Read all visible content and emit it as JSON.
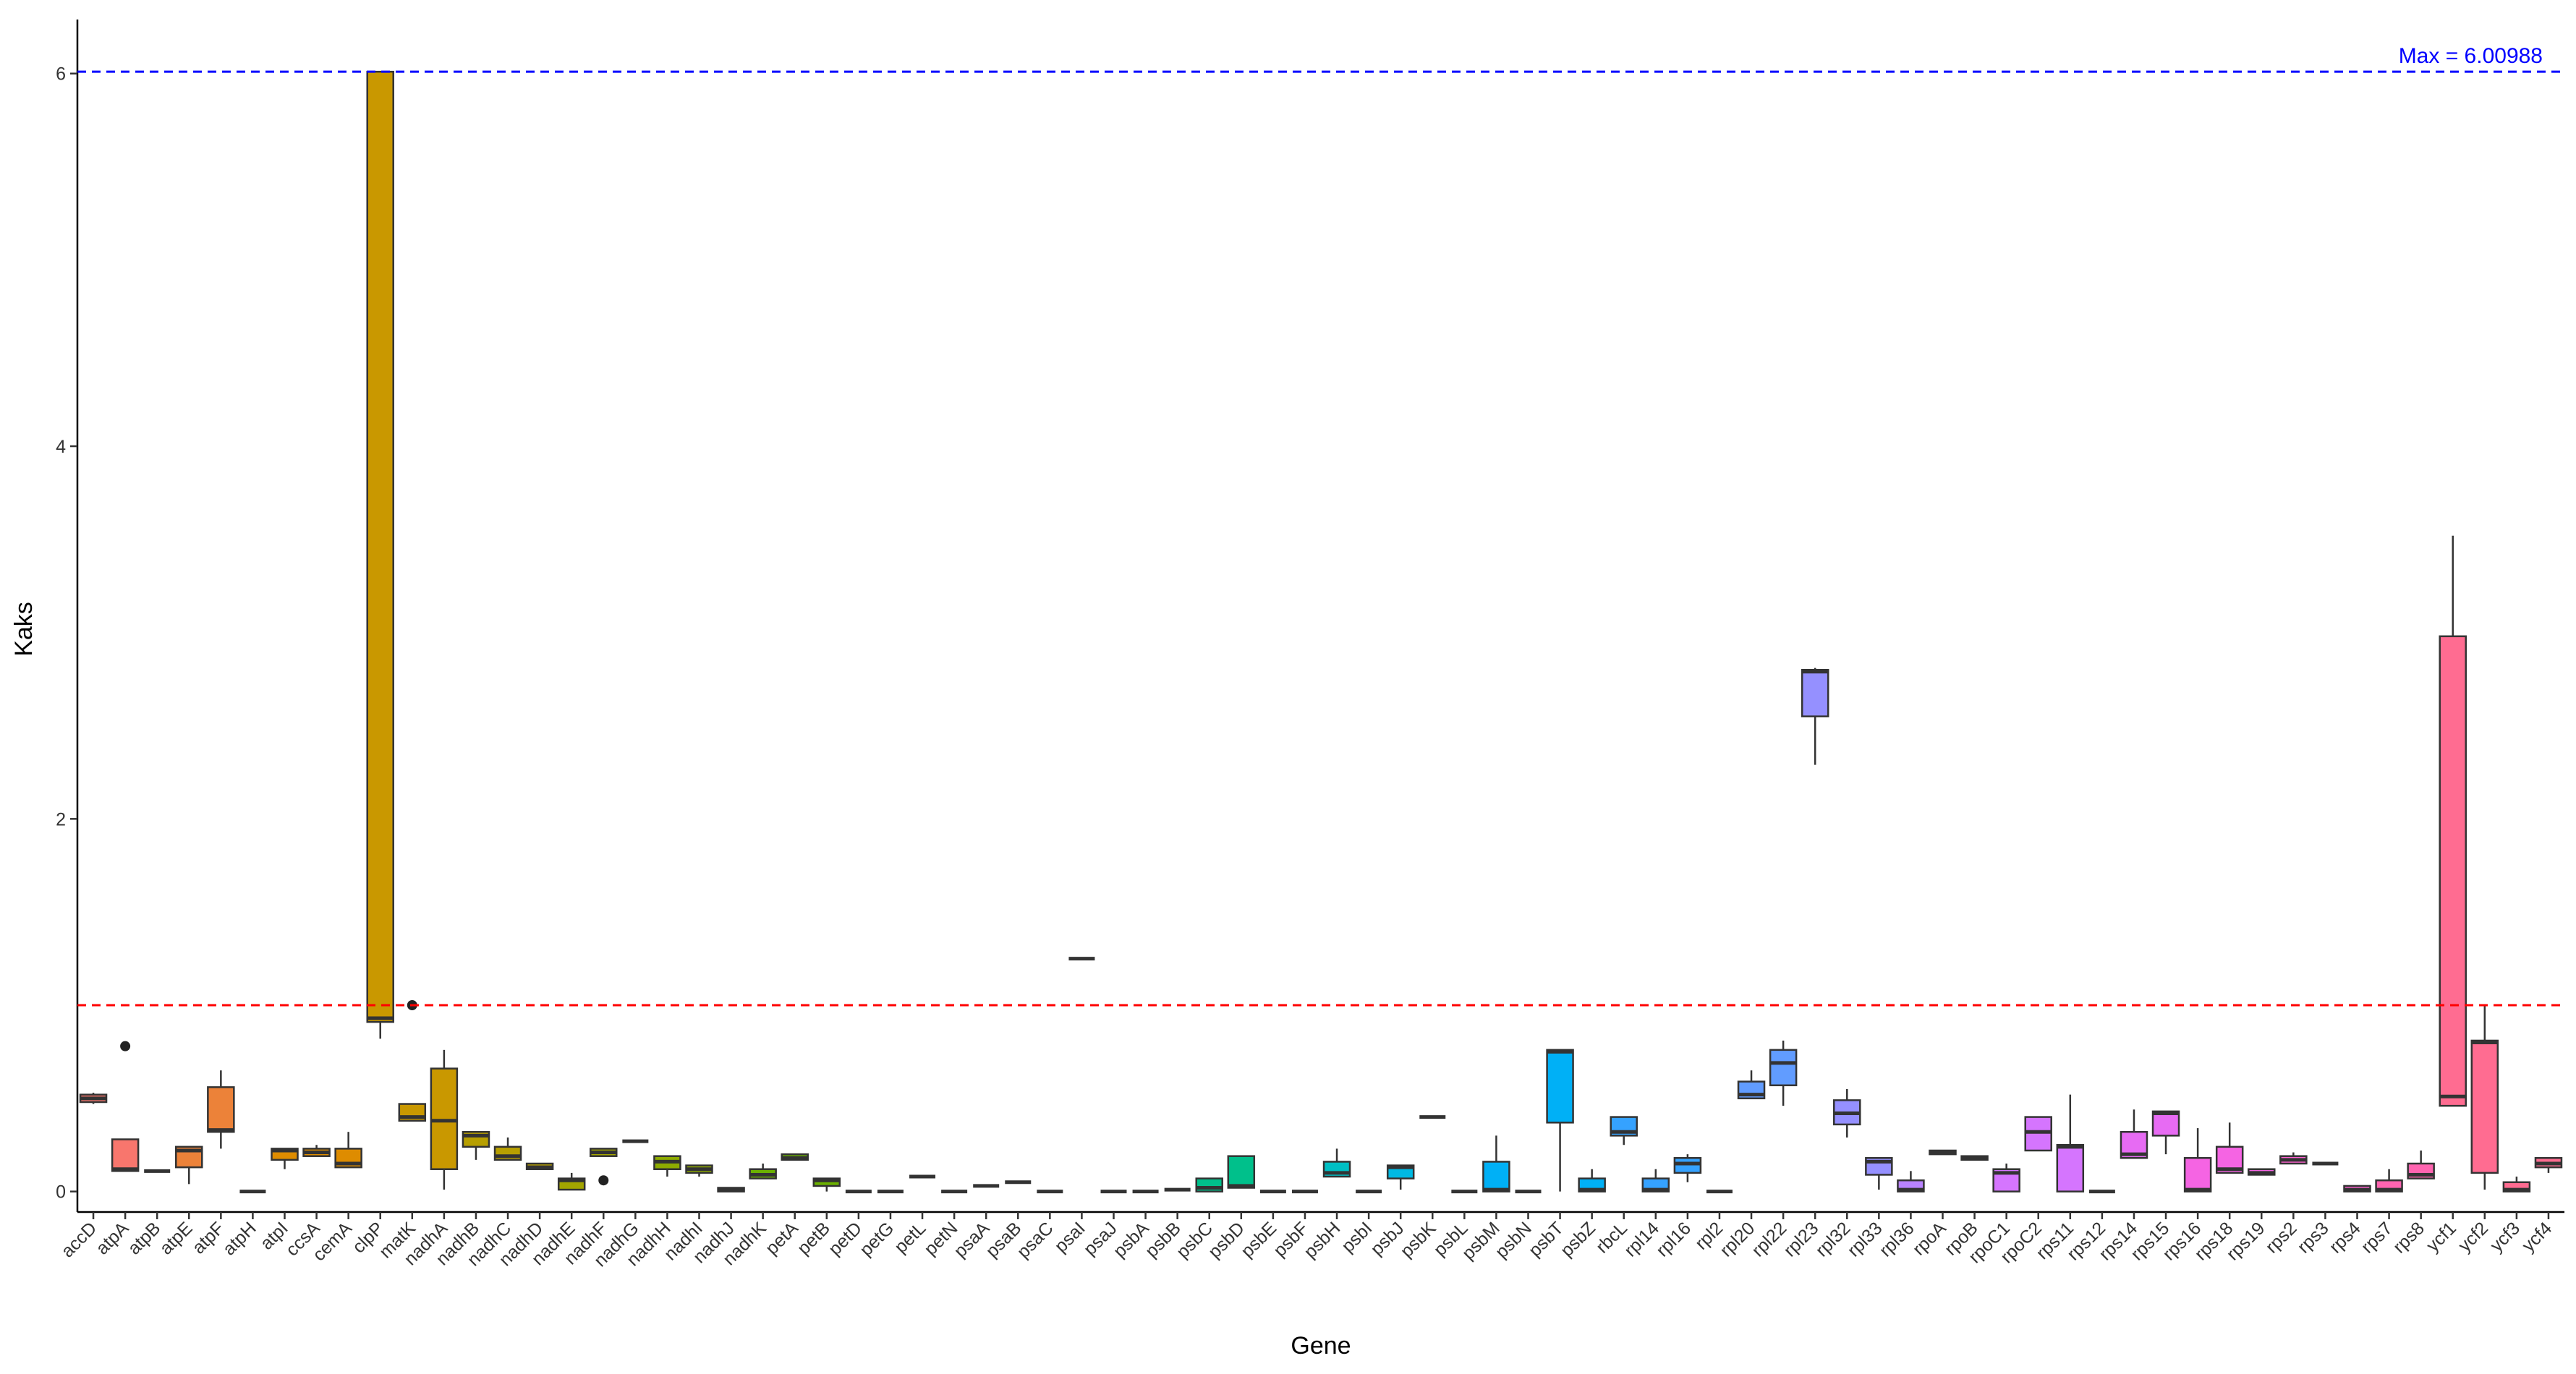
{
  "chart_data": {
    "type": "boxplot",
    "xlabel": "Gene",
    "ylabel": "Kaks",
    "ylim": [
      -0.11,
      6.29
    ],
    "yticks": [
      0,
      2,
      4,
      6
    ],
    "hlines": [
      {
        "value": 6.00988,
        "color": "#0000FF",
        "label": "Max = 6.00988"
      },
      {
        "value": 1,
        "color": "#FF0000"
      }
    ],
    "boxes": [
      {
        "name": "accD",
        "color": "#F8766D",
        "min": 0.47,
        "q1": 0.48,
        "median": 0.5,
        "q3": 0.52,
        "max": 0.53
      },
      {
        "name": "atpA",
        "color": "#F8766D",
        "min": 0.11,
        "q1": 0.11,
        "median": 0.12,
        "q3": 0.28,
        "max": 0.28,
        "outliers": [
          0.78
        ]
      },
      {
        "name": "atpB",
        "color": "#F8766D",
        "min": 0.11,
        "q1": 0.11,
        "median": 0.11,
        "q3": 0.11,
        "max": 0.11
      },
      {
        "name": "atpE",
        "color": "#EC8239",
        "min": 0.04,
        "q1": 0.13,
        "median": 0.22,
        "q3": 0.24,
        "max": 0.24
      },
      {
        "name": "atpF",
        "color": "#EC8239",
        "min": 0.23,
        "q1": 0.32,
        "median": 0.33,
        "q3": 0.56,
        "max": 0.65
      },
      {
        "name": "atpH",
        "color": "#EC8239",
        "min": 0,
        "q1": 0,
        "median": 0,
        "q3": 0,
        "max": 0
      },
      {
        "name": "atpI",
        "color": "#DE8C00",
        "min": 0.12,
        "q1": 0.17,
        "median": 0.22,
        "q3": 0.23,
        "max": 0.23
      },
      {
        "name": "ccsA",
        "color": "#DE8C00",
        "min": 0.19,
        "q1": 0.19,
        "median": 0.21,
        "q3": 0.23,
        "max": 0.25
      },
      {
        "name": "cemA",
        "color": "#DE8C00",
        "min": 0.13,
        "q1": 0.13,
        "median": 0.15,
        "q3": 0.23,
        "max": 0.32
      },
      {
        "name": "clpP",
        "color": "#C99800",
        "min": 0.82,
        "q1": 0.91,
        "median": 0.93,
        "q3": 6.00988,
        "max": 6.00988
      },
      {
        "name": "matK",
        "color": "#C99800",
        "min": 0.38,
        "q1": 0.38,
        "median": 0.4,
        "q3": 0.47,
        "max": 0.47,
        "outliers": [
          1.0
        ]
      },
      {
        "name": "nadhA",
        "color": "#C99800",
        "min": 0.01,
        "q1": 0.12,
        "median": 0.38,
        "q3": 0.66,
        "max": 0.76
      },
      {
        "name": "nadhB",
        "color": "#B79F00",
        "min": 0.17,
        "q1": 0.24,
        "median": 0.3,
        "q3": 0.32,
        "max": 0.32
      },
      {
        "name": "nadhC",
        "color": "#B79F00",
        "min": 0.17,
        "q1": 0.17,
        "median": 0.19,
        "q3": 0.24,
        "max": 0.29
      },
      {
        "name": "nadhD",
        "color": "#B79F00",
        "min": 0.12,
        "q1": 0.12,
        "median": 0.13,
        "q3": 0.15,
        "max": 0.15
      },
      {
        "name": "nadhE",
        "color": "#A3A500",
        "min": 0.01,
        "q1": 0.01,
        "median": 0.06,
        "q3": 0.07,
        "max": 0.1
      },
      {
        "name": "nadhF",
        "color": "#A3A500",
        "min": 0.19,
        "q1": 0.19,
        "median": 0.21,
        "q3": 0.23,
        "max": 0.23,
        "outliers": [
          0.06
        ]
      },
      {
        "name": "nadhG",
        "color": "#A3A500",
        "min": 0.27,
        "q1": 0.27,
        "median": 0.27,
        "q3": 0.27,
        "max": 0.27
      },
      {
        "name": "nadhH",
        "color": "#8EAB00",
        "min": 0.08,
        "q1": 0.12,
        "median": 0.16,
        "q3": 0.19,
        "max": 0.19
      },
      {
        "name": "nadhI",
        "color": "#8EAB00",
        "min": 0.08,
        "q1": 0.1,
        "median": 0.12,
        "q3": 0.14,
        "max": 0.14
      },
      {
        "name": "nadhJ",
        "color": "#8EAB00",
        "min": 0,
        "q1": 0,
        "median": 0.01,
        "q3": 0.02,
        "max": 0.02
      },
      {
        "name": "nadhK",
        "color": "#6BB100",
        "min": 0.07,
        "q1": 0.07,
        "median": 0.09,
        "q3": 0.12,
        "max": 0.15
      },
      {
        "name": "petA",
        "color": "#6BB100",
        "min": 0.17,
        "q1": 0.17,
        "median": 0.18,
        "q3": 0.2,
        "max": 0.2
      },
      {
        "name": "petB",
        "color": "#6BB100",
        "min": 0,
        "q1": 0.03,
        "median": 0.06,
        "q3": 0.07,
        "max": 0.07
      },
      {
        "name": "petD",
        "color": "#6BB100",
        "min": 0,
        "q1": 0,
        "median": 0,
        "q3": 0,
        "max": 0
      },
      {
        "name": "petG",
        "color": "#39B600",
        "min": 0,
        "q1": 0,
        "median": 0,
        "q3": 0,
        "max": 0
      },
      {
        "name": "petL",
        "color": "#39B600",
        "min": 0.08,
        "q1": 0.08,
        "median": 0.08,
        "q3": 0.08,
        "max": 0.08
      },
      {
        "name": "petN",
        "color": "#39B600",
        "min": 0,
        "q1": 0,
        "median": 0,
        "q3": 0,
        "max": 0
      },
      {
        "name": "psaA",
        "color": "#00BA38",
        "min": 0.03,
        "q1": 0.03,
        "median": 0.03,
        "q3": 0.03,
        "max": 0.03
      },
      {
        "name": "psaB",
        "color": "#00BA38",
        "min": 0.05,
        "q1": 0.05,
        "median": 0.05,
        "q3": 0.05,
        "max": 0.05
      },
      {
        "name": "psaC",
        "color": "#00BA38",
        "min": 0,
        "q1": 0,
        "median": 0,
        "q3": 0,
        "max": 0
      },
      {
        "name": "psaI",
        "color": "#00BE67",
        "min": 1.25,
        "q1": 1.25,
        "median": 1.25,
        "q3": 1.25,
        "max": 1.25
      },
      {
        "name": "psaJ",
        "color": "#00BE67",
        "min": 0,
        "q1": 0,
        "median": 0,
        "q3": 0,
        "max": 0
      },
      {
        "name": "psbA",
        "color": "#00BE67",
        "min": 0,
        "q1": 0,
        "median": 0,
        "q3": 0,
        "max": 0
      },
      {
        "name": "psbB",
        "color": "#00C08B",
        "min": 0.01,
        "q1": 0.01,
        "median": 0.01,
        "q3": 0.01,
        "max": 0.01
      },
      {
        "name": "psbC",
        "color": "#00C08B",
        "min": 0,
        "q1": 0,
        "median": 0.02,
        "q3": 0.07,
        "max": 0.07
      },
      {
        "name": "psbD",
        "color": "#00C08B",
        "min": 0.02,
        "q1": 0.02,
        "median": 0.03,
        "q3": 0.19,
        "max": 0.19
      },
      {
        "name": "psbE",
        "color": "#00C08B",
        "min": 0,
        "q1": 0,
        "median": 0,
        "q3": 0,
        "max": 0
      },
      {
        "name": "psbF",
        "color": "#00BFC4",
        "min": 0,
        "q1": 0,
        "median": 0,
        "q3": 0,
        "max": 0
      },
      {
        "name": "psbH",
        "color": "#00BFC4",
        "min": 0.08,
        "q1": 0.08,
        "median": 0.1,
        "q3": 0.16,
        "max": 0.23
      },
      {
        "name": "psbI",
        "color": "#00BFC4",
        "min": 0,
        "q1": 0,
        "median": 0,
        "q3": 0,
        "max": 0
      },
      {
        "name": "psbJ",
        "color": "#00B9E3",
        "min": 0.01,
        "q1": 0.07,
        "median": 0.13,
        "q3": 0.14,
        "max": 0.14
      },
      {
        "name": "psbK",
        "color": "#00B9E3",
        "min": 0.4,
        "q1": 0.4,
        "median": 0.4,
        "q3": 0.4,
        "max": 0.4
      },
      {
        "name": "psbL",
        "color": "#00B9E3",
        "min": 0,
        "q1": 0,
        "median": 0,
        "q3": 0,
        "max": 0
      },
      {
        "name": "psbM",
        "color": "#00B0F6",
        "min": 0,
        "q1": 0,
        "median": 0.01,
        "q3": 0.16,
        "max": 0.3
      },
      {
        "name": "psbN",
        "color": "#00B0F6",
        "min": 0,
        "q1": 0,
        "median": 0,
        "q3": 0,
        "max": 0
      },
      {
        "name": "psbT",
        "color": "#00B0F6",
        "min": 0,
        "q1": 0.37,
        "median": 0.75,
        "q3": 0.76,
        "max": 0.76
      },
      {
        "name": "psbZ",
        "color": "#00B0F6",
        "min": 0,
        "q1": 0,
        "median": 0.01,
        "q3": 0.07,
        "max": 0.12
      },
      {
        "name": "rbcL",
        "color": "#35A2FF",
        "min": 0.25,
        "q1": 0.3,
        "median": 0.32,
        "q3": 0.4,
        "max": 0.4
      },
      {
        "name": "rpl14",
        "color": "#35A2FF",
        "min": 0,
        "q1": 0,
        "median": 0.01,
        "q3": 0.07,
        "max": 0.12
      },
      {
        "name": "rpl16",
        "color": "#35A2FF",
        "min": 0.05,
        "q1": 0.1,
        "median": 0.15,
        "q3": 0.18,
        "max": 0.2
      },
      {
        "name": "rpl2",
        "color": "#619CFF",
        "min": 0,
        "q1": 0,
        "median": 0,
        "q3": 0,
        "max": 0
      },
      {
        "name": "rpl20",
        "color": "#619CFF",
        "min": 0.5,
        "q1": 0.5,
        "median": 0.52,
        "q3": 0.59,
        "max": 0.65
      },
      {
        "name": "rpl22",
        "color": "#619CFF",
        "min": 0.46,
        "q1": 0.57,
        "median": 0.69,
        "q3": 0.76,
        "max": 0.81
      },
      {
        "name": "rpl23",
        "color": "#9590FF",
        "min": 2.29,
        "q1": 2.55,
        "median": 2.79,
        "q3": 2.8,
        "max": 2.81
      },
      {
        "name": "rpl32",
        "color": "#9590FF",
        "min": 0.29,
        "q1": 0.36,
        "median": 0.42,
        "q3": 0.49,
        "max": 0.55
      },
      {
        "name": "rpl33",
        "color": "#9590FF",
        "min": 0.01,
        "q1": 0.09,
        "median": 0.16,
        "q3": 0.18,
        "max": 0.18
      },
      {
        "name": "rpl36",
        "color": "#B983FF",
        "min": 0,
        "q1": 0,
        "median": 0.01,
        "q3": 0.06,
        "max": 0.11
      },
      {
        "name": "rpoA",
        "color": "#B983FF",
        "min": 0.2,
        "q1": 0.2,
        "median": 0.21,
        "q3": 0.22,
        "max": 0.22
      },
      {
        "name": "rpoB",
        "color": "#B983FF",
        "min": 0.17,
        "q1": 0.17,
        "median": 0.18,
        "q3": 0.19,
        "max": 0.19
      },
      {
        "name": "rpoC1",
        "color": "#D575FE",
        "min": 0,
        "q1": 0,
        "median": 0.1,
        "q3": 0.12,
        "max": 0.15
      },
      {
        "name": "rpoC2",
        "color": "#D575FE",
        "min": 0.22,
        "q1": 0.22,
        "median": 0.32,
        "q3": 0.4,
        "max": 0.4
      },
      {
        "name": "rps11",
        "color": "#D575FE",
        "min": 0,
        "q1": 0,
        "median": 0.24,
        "q3": 0.25,
        "max": 0.52
      },
      {
        "name": "rps12",
        "color": "#E76BF3",
        "min": 0,
        "q1": 0,
        "median": 0,
        "q3": 0,
        "max": 0
      },
      {
        "name": "rps14",
        "color": "#E76BF3",
        "min": 0.18,
        "q1": 0.18,
        "median": 0.2,
        "q3": 0.32,
        "max": 0.44
      },
      {
        "name": "rps15",
        "color": "#E76BF3",
        "min": 0.2,
        "q1": 0.3,
        "median": 0.42,
        "q3": 0.43,
        "max": 0.43
      },
      {
        "name": "rps16",
        "color": "#F564E3",
        "min": 0,
        "q1": 0,
        "median": 0.01,
        "q3": 0.18,
        "max": 0.34
      },
      {
        "name": "rps18",
        "color": "#F564E3",
        "min": 0.1,
        "q1": 0.1,
        "median": 0.12,
        "q3": 0.24,
        "max": 0.37
      },
      {
        "name": "rps19",
        "color": "#F564E3",
        "min": 0.09,
        "q1": 0.09,
        "median": 0.1,
        "q3": 0.12,
        "max": 0.12
      },
      {
        "name": "rps2",
        "color": "#FD61D1",
        "min": 0.15,
        "q1": 0.15,
        "median": 0.17,
        "q3": 0.19,
        "max": 0.21
      },
      {
        "name": "rps3",
        "color": "#FD61D1",
        "min": 0.15,
        "q1": 0.15,
        "median": 0.15,
        "q3": 0.15,
        "max": 0.15
      },
      {
        "name": "rps4",
        "color": "#FD61D1",
        "min": 0,
        "q1": 0,
        "median": 0.01,
        "q3": 0.03,
        "max": 0.03
      },
      {
        "name": "rps7",
        "color": "#FF64B0",
        "min": 0,
        "q1": 0,
        "median": 0.01,
        "q3": 0.06,
        "max": 0.12
      },
      {
        "name": "rps8",
        "color": "#FF64B0",
        "min": 0.07,
        "q1": 0.07,
        "median": 0.09,
        "q3": 0.15,
        "max": 0.22
      },
      {
        "name": "ycf1",
        "color": "#FF6C91",
        "min": 0.46,
        "q1": 0.46,
        "median": 0.51,
        "q3": 2.98,
        "max": 3.52
      },
      {
        "name": "ycf2",
        "color": "#FF6C91",
        "min": 0.01,
        "q1": 0.1,
        "median": 0.8,
        "q3": 0.81,
        "max": 1.0
      },
      {
        "name": "ycf3",
        "color": "#FF6C91",
        "min": 0,
        "q1": 0,
        "median": 0.01,
        "q3": 0.05,
        "max": 0.08
      },
      {
        "name": "ycf4",
        "color": "#FF6C91",
        "min": 0.1,
        "q1": 0.13,
        "median": 0.15,
        "q3": 0.18,
        "max": 0.18
      }
    ]
  }
}
